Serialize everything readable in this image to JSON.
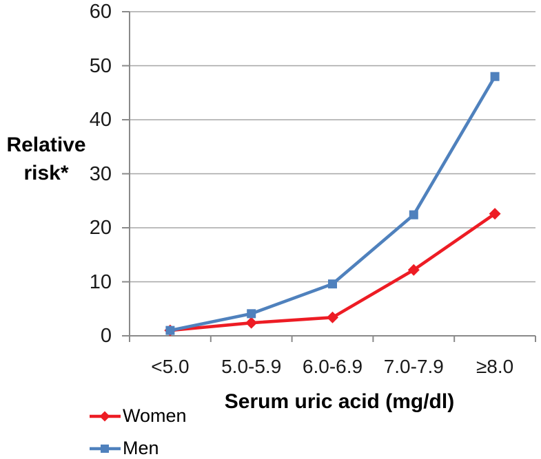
{
  "chart_data": {
    "type": "line",
    "categories": [
      "<5.0",
      "5.0-5.9",
      "6.0-6.9",
      "7.0-7.9",
      "≥8.0"
    ],
    "series": [
      {
        "name": "Women",
        "color": "#ed1c24",
        "marker": "diamond",
        "values": [
          1.0,
          2.4,
          3.4,
          12.2,
          22.6
        ]
      },
      {
        "name": "Men",
        "color": "#4f81bd",
        "marker": "square",
        "values": [
          1.0,
          4.1,
          9.6,
          22.4,
          48.0
        ]
      }
    ],
    "title": "",
    "xlabel": "Serum uric acid (mg/dl)",
    "ylabel": "Relative\nrisk*",
    "y_ticks": [
      0,
      10,
      20,
      30,
      40,
      50,
      60
    ],
    "ylim": [
      0,
      60
    ],
    "grid": "horizontal-only",
    "legend_position": "bottom-left",
    "colors": {
      "gridline": "#a6a6a6",
      "axis": "#898989",
      "tick_text": "#1a1a1a",
      "title_text": "#000000",
      "background": "#ffffff"
    }
  }
}
